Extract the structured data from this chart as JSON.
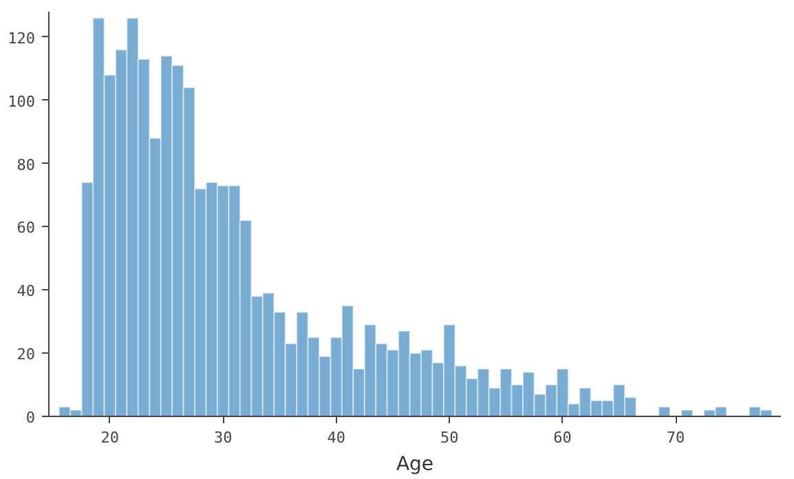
{
  "chart_data": {
    "type": "histogram",
    "xlabel": "Age",
    "color": "#78acd3",
    "bins": [
      15.5,
      16.5,
      17.5,
      18.5,
      19.5,
      20.5,
      21.5,
      22.5,
      23.5,
      24.5,
      25.5,
      26.5,
      27.5,
      28.5,
      29.5,
      30.5,
      31.5,
      32.5,
      33.5,
      34.5,
      35.5,
      36.5,
      37.5,
      38.5,
      39.5,
      40.5,
      41.5,
      42.5,
      43.5,
      44.5,
      45.5,
      46.5,
      47.5,
      48.5,
      49.5,
      50.5,
      51.5,
      52.5,
      53.5,
      54.5,
      55.5,
      56.5,
      57.5,
      58.5,
      59.5,
      60.5,
      61.5,
      62.5,
      63.5,
      64.5,
      65.5,
      66.5,
      67.5,
      68.5,
      69.5,
      70.5,
      71.5,
      72.5,
      73.5,
      74.5,
      75.5,
      76.5,
      77.5,
      78.5
    ],
    "values": [
      3,
      2,
      74,
      126,
      108,
      116,
      126,
      113,
      88,
      114,
      111,
      104,
      72,
      74,
      73,
      73,
      62,
      38,
      39,
      33,
      23,
      33,
      25,
      19,
      25,
      35,
      15,
      29,
      23,
      21,
      27,
      20,
      21,
      17,
      29,
      16,
      12,
      15,
      9,
      15,
      10,
      14,
      7,
      10,
      15,
      4,
      9,
      5,
      5,
      10,
      6,
      0,
      0,
      3,
      0,
      2,
      0,
      2,
      3,
      0,
      0,
      3,
      2
    ],
    "xlim": [
      14.6,
      79.3
    ],
    "xticks": [
      20,
      30,
      40,
      50,
      60,
      70
    ],
    "ylim": [
      0,
      128
    ],
    "yticks": [
      0,
      20,
      40,
      60,
      80,
      100,
      120
    ],
    "grid": false
  }
}
